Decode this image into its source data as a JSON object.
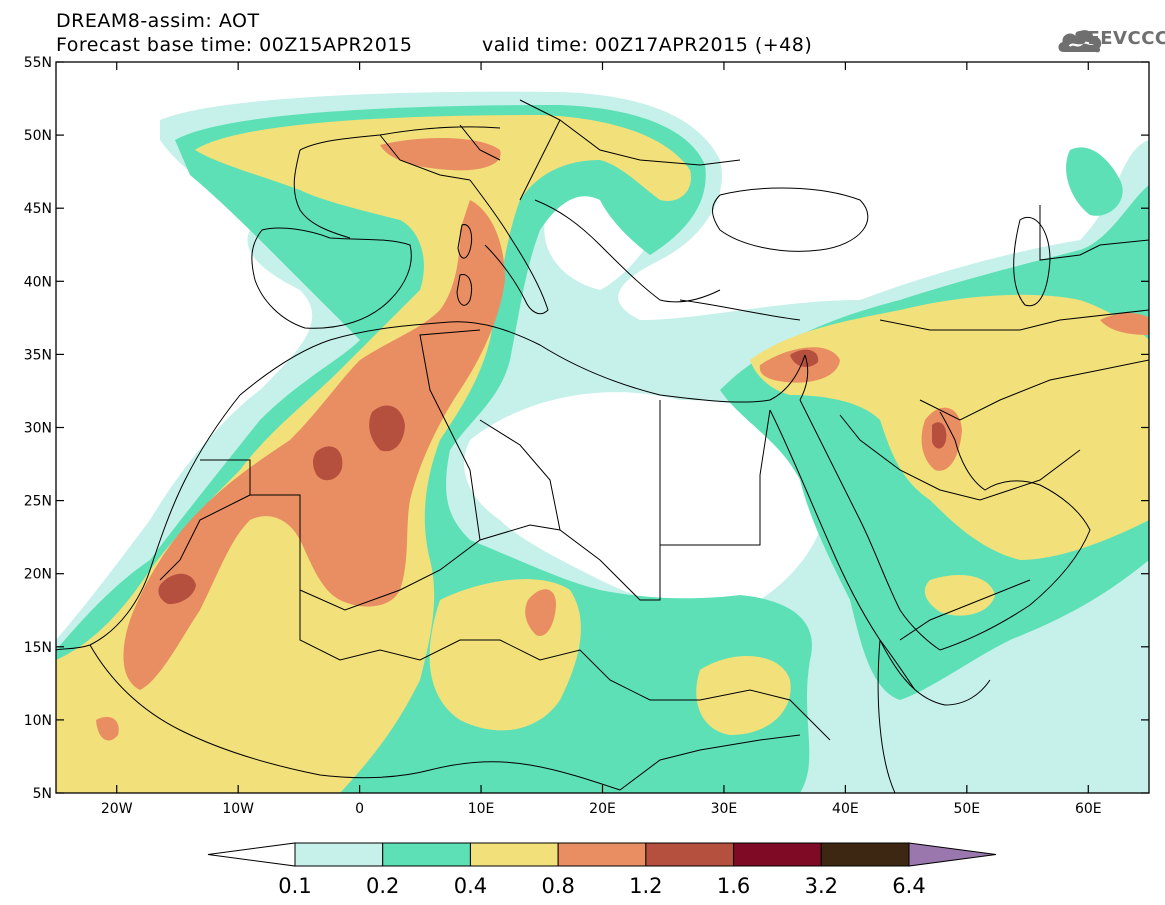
{
  "header": {
    "title_line1": "DREAM8-assim: AOT",
    "title_line2": "Forecast base time: 00Z15APR2015",
    "valid_time": "valid time: 00Z17APR2015 (+48)",
    "logo_text": "SEEVCCC"
  },
  "map": {
    "lon_range": [
      -25,
      65
    ],
    "lat_range": [
      5,
      55
    ],
    "lon_ticks": [
      {
        "value": -20,
        "label": "20W"
      },
      {
        "value": -10,
        "label": "10W"
      },
      {
        "value": 0,
        "label": "0"
      },
      {
        "value": 10,
        "label": "10E"
      },
      {
        "value": 20,
        "label": "20E"
      },
      {
        "value": 30,
        "label": "30E"
      },
      {
        "value": 40,
        "label": "40E"
      },
      {
        "value": 50,
        "label": "50E"
      },
      {
        "value": 60,
        "label": "60E"
      }
    ],
    "lat_ticks": [
      {
        "value": 55,
        "label": "55N"
      },
      {
        "value": 50,
        "label": "50N"
      },
      {
        "value": 45,
        "label": "45N"
      },
      {
        "value": 40,
        "label": "40N"
      },
      {
        "value": 35,
        "label": "35N"
      },
      {
        "value": 30,
        "label": "30N"
      },
      {
        "value": 25,
        "label": "25N"
      },
      {
        "value": 20,
        "label": "20N"
      },
      {
        "value": 15,
        "label": "15N"
      },
      {
        "value": 10,
        "label": "10N"
      },
      {
        "value": 5,
        "label": "5N"
      }
    ]
  },
  "colorbar": {
    "colors": [
      "#ffffff",
      "#c6f0ea",
      "#5ee0b6",
      "#f2e07a",
      "#e98e62",
      "#b5503e",
      "#7f0a25",
      "#3d2712",
      "#9a77ad"
    ],
    "labels": [
      "0.1",
      "0.2",
      "0.4",
      "0.8",
      "1.2",
      "1.6",
      "3.2",
      "6.4"
    ]
  }
}
